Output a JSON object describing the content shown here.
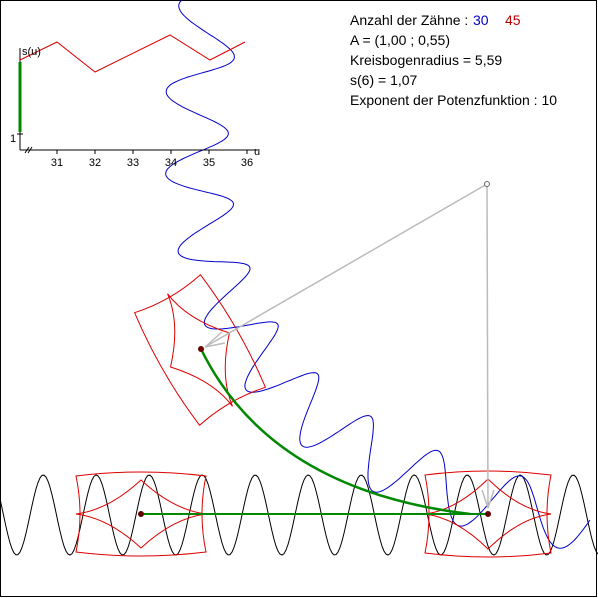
{
  "info": {
    "teeth_label": "Anzahl der Zähne :",
    "teeth_blue": "30",
    "teeth_red": "45",
    "point": "A = (1,00 ; 0,55)",
    "radius": "Kreisbogenradius = 5,59",
    "s6": "s(6) = 1,07",
    "exponent": "Exponent der Potenzfunktion : 10"
  },
  "graph": {
    "y_label": "s(u)",
    "y_tick": "1",
    "x_ticks": [
      "31",
      "32",
      "33",
      "34",
      "35",
      "36"
    ],
    "x_label": "u"
  }
}
